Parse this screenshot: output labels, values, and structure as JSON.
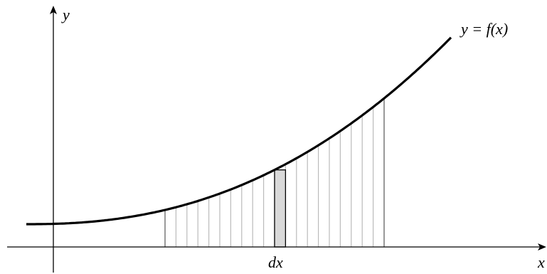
{
  "labels": {
    "y_axis": "y",
    "curve": "y = f(x)",
    "strip": "dx",
    "x_axis": "x"
  }
}
